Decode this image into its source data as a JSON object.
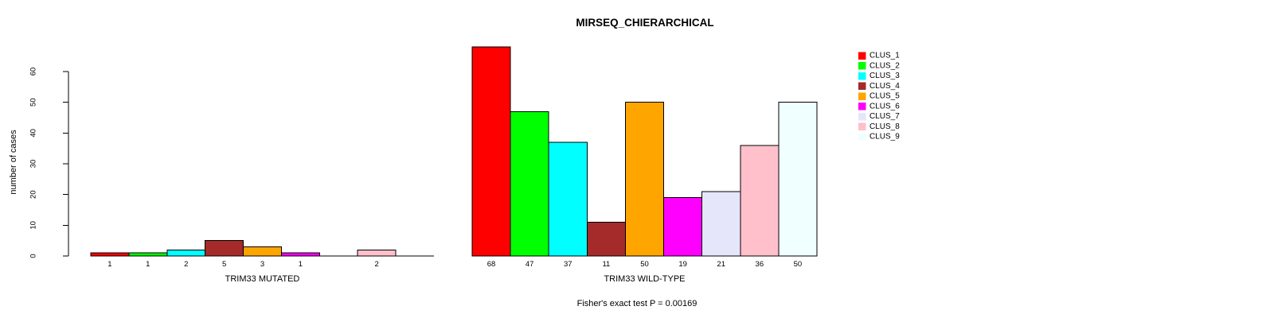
{
  "chart_data": {
    "type": "bar",
    "title": "MIRSEQ_CHIERARCHICAL",
    "ylabel": "number of cases",
    "ylim": [
      0,
      60
    ],
    "yticks": [
      0,
      10,
      20,
      30,
      40,
      50,
      60
    ],
    "grid": false,
    "legend_position": "right",
    "background": "#ffffff",
    "bar_border_color": "#000000",
    "clusters": [
      {
        "label": "CLUS_1",
        "color": "#FF0000"
      },
      {
        "label": "CLUS_2",
        "color": "#00FF00"
      },
      {
        "label": "CLUS_3",
        "color": "#00FFFF"
      },
      {
        "label": "CLUS_4",
        "color": "#A52A2A"
      },
      {
        "label": "CLUS_5",
        "color": "#FFA500"
      },
      {
        "label": "CLUS_6",
        "color": "#FF00FF"
      },
      {
        "label": "CLUS_7",
        "color": "#E6E6FA"
      },
      {
        "label": "CLUS_8",
        "color": "#FFC0CB"
      },
      {
        "label": "CLUS_9",
        "color": "#F0FFFF"
      }
    ],
    "panels": [
      {
        "xlabel": "TRIM33 MUTATED",
        "values": [
          1,
          1,
          2,
          5,
          3,
          1,
          0,
          2,
          0
        ],
        "bar_labels": [
          "1",
          "1",
          "2",
          "5",
          "3",
          "1",
          "",
          "2",
          ""
        ]
      },
      {
        "xlabel": "TRIM33 WILD-TYPE",
        "values": [
          68,
          47,
          37,
          11,
          50,
          19,
          21,
          36,
          50
        ],
        "bar_labels": [
          "68",
          "47",
          "37",
          "11",
          "50",
          "19",
          "21",
          "36",
          "50"
        ]
      }
    ],
    "annotation": "Fisher's exact test P = 0.00169"
  }
}
